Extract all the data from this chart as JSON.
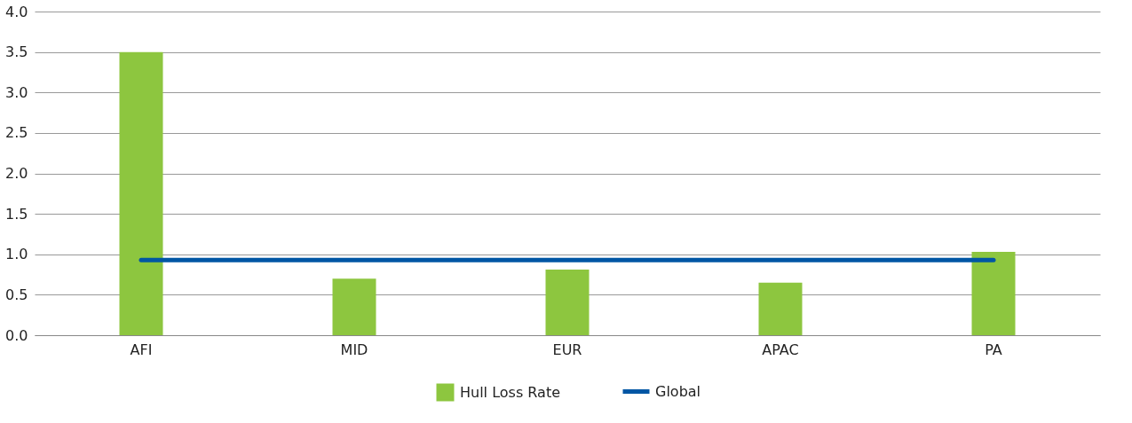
{
  "chart_data": {
    "type": "bar",
    "categories": [
      "AFI",
      "MID",
      "EUR",
      "APAC",
      "PA"
    ],
    "series": [
      {
        "name": "Hull Loss Rate",
        "color": "#8dc63f",
        "values": [
          3.5,
          0.7,
          0.81,
          0.65,
          1.03
        ]
      },
      {
        "name": "Global",
        "type": "line",
        "color": "#0056a4",
        "values": [
          0.93,
          0.93,
          0.93,
          0.93,
          0.93
        ]
      }
    ],
    "ylim": [
      0,
      4.0
    ],
    "yticks": [
      {
        "value": 0,
        "label": "0.0"
      },
      {
        "value": 0.5,
        "label": "0.5"
      },
      {
        "value": 1,
        "label": "1.0"
      },
      {
        "value": 1.5,
        "label": "1.5"
      },
      {
        "value": 2,
        "label": "2.0"
      },
      {
        "value": 2.5,
        "label": "2.5"
      },
      {
        "value": 3,
        "label": "3.0"
      },
      {
        "value": 3.5,
        "label": "3.5"
      },
      {
        "value": 4,
        "label": "4.0"
      }
    ],
    "grid": "y",
    "legend": "bottom"
  }
}
